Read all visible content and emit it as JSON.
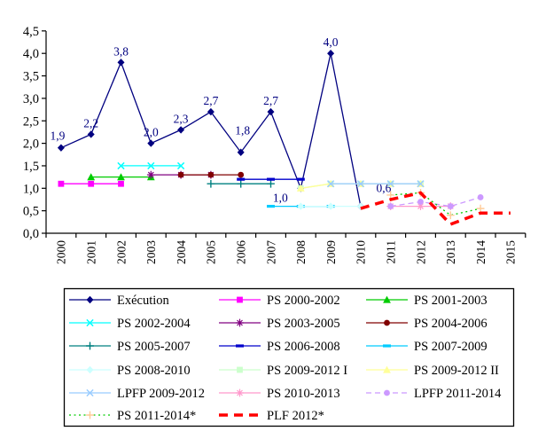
{
  "chart_data": {
    "type": "line",
    "title": "",
    "xlabel": "",
    "ylabel": "",
    "grid": false,
    "legend_position": "bottom",
    "ylim": [
      0,
      4.5
    ],
    "ytick_step": 0.5,
    "ytick_labels": [
      "0,0",
      "0,5",
      "1,0",
      "1,5",
      "2,0",
      "2,5",
      "3,0",
      "3,5",
      "4,0",
      "4,5"
    ],
    "x_categories": [
      "2000",
      "2001",
      "2002",
      "2003",
      "2004",
      "2005",
      "2006",
      "2007",
      "2008",
      "2009",
      "2010",
      "2011",
      "2012",
      "2013",
      "2014",
      "2015"
    ],
    "series": [
      {
        "name": "Exécution",
        "color": "#000080",
        "marker": "diamond",
        "line_style": "solid",
        "line_width": 1.3,
        "years": [
          2000,
          2001,
          2002,
          2003,
          2004,
          2005,
          2006,
          2007,
          2008,
          2009,
          2010
        ],
        "values": [
          1.9,
          2.2,
          3.8,
          2.0,
          2.3,
          2.7,
          1.8,
          2.7,
          1.0,
          4.0,
          0.6
        ],
        "point_labels": [
          "1,9",
          "2,2",
          "3,8",
          "2,0",
          "2,3",
          "2,7",
          "1,8",
          "2,7",
          "1,0",
          "4,0",
          "0,6"
        ]
      },
      {
        "name": "PS 2000-2002",
        "color": "#FF00FF",
        "marker": "square",
        "line_style": "solid",
        "years": [
          2000,
          2001,
          2002
        ],
        "values": [
          1.1,
          1.1,
          1.1
        ]
      },
      {
        "name": "PS 2001-2003",
        "color": "#00CC00",
        "marker": "triangle",
        "line_style": "solid",
        "years": [
          2001,
          2002,
          2003
        ],
        "values": [
          1.25,
          1.25,
          1.25
        ]
      },
      {
        "name": "PS 2002-2004",
        "color": "#00FFFF",
        "marker": "x",
        "line_style": "solid",
        "years": [
          2002,
          2003,
          2004
        ],
        "values": [
          1.5,
          1.5,
          1.5
        ]
      },
      {
        "name": "PS 2003-2005",
        "color": "#800080",
        "marker": "asterisk",
        "line_style": "solid",
        "years": [
          2003,
          2004,
          2005
        ],
        "values": [
          1.3,
          1.3,
          1.3
        ]
      },
      {
        "name": "PS 2004-2006",
        "color": "#800000",
        "marker": "circle",
        "line_style": "solid",
        "years": [
          2004,
          2005,
          2006
        ],
        "values": [
          1.3,
          1.3,
          1.3
        ]
      },
      {
        "name": "PS 2005-2007",
        "color": "#008080",
        "marker": "plus",
        "line_style": "solid",
        "years": [
          2005,
          2006,
          2007
        ],
        "values": [
          1.1,
          1.1,
          1.1
        ]
      },
      {
        "name": "PS 2006-2008",
        "color": "#0000CC",
        "marker": "hdash",
        "line_style": "solid",
        "years": [
          2006,
          2007,
          2008
        ],
        "values": [
          1.2,
          1.2,
          1.2
        ]
      },
      {
        "name": "PS 2007-2009",
        "color": "#00CCFF",
        "marker": "hdash",
        "line_style": "solid",
        "years": [
          2007,
          2008,
          2009
        ],
        "values": [
          0.6,
          0.6,
          0.6
        ]
      },
      {
        "name": "PS 2008-2010",
        "color": "#CCFFFF",
        "marker": "diamond",
        "line_style": "solid",
        "years": [
          2008,
          2009,
          2010
        ],
        "values": [
          0.6,
          0.6,
          0.6
        ]
      },
      {
        "name": "PS 2009-2012 I",
        "color": "#CCFFCC",
        "marker": "square",
        "line_style": "solid",
        "years": [
          2008,
          2009,
          2010,
          2011,
          2012
        ],
        "values": [
          1.0,
          1.1,
          1.1,
          1.1,
          1.1
        ]
      },
      {
        "name": "PS 2009-2012 II",
        "color": "#FFFF99",
        "marker": "triangle",
        "line_style": "solid",
        "years": [
          2008,
          2009,
          2010,
          2011,
          2012
        ],
        "values": [
          1.0,
          1.1,
          1.1,
          1.1,
          1.1
        ]
      },
      {
        "name": "LPFP 2009-2012",
        "color": "#99CCFF",
        "marker": "x",
        "line_style": "solid",
        "years": [
          2009,
          2010,
          2011,
          2012
        ],
        "values": [
          1.1,
          1.1,
          1.1,
          1.1
        ]
      },
      {
        "name": "PS 2010-2013",
        "color": "#FF99CC",
        "marker": "asterisk",
        "line_style": "solid",
        "years": [
          2011,
          2012,
          2013
        ],
        "values": [
          0.6,
          0.6,
          0.6
        ]
      },
      {
        "name": "LPFP 2011-2014",
        "color": "#CC99FF",
        "marker": "circle",
        "line_style": "dashed",
        "years": [
          2011,
          2012,
          2013,
          2014
        ],
        "values": [
          0.6,
          0.7,
          0.6,
          0.8
        ]
      },
      {
        "name": "PS 2011-2014*",
        "color": "#00CC00",
        "marker": "plus",
        "marker_color": "#FFCC99",
        "line_style": "dotted",
        "years": [
          2011,
          2012,
          2013,
          2014
        ],
        "values": [
          0.85,
          0.9,
          0.4,
          0.55
        ]
      },
      {
        "name": "PLF 2012*",
        "color": "#FF0000",
        "marker": "none",
        "line_style": "plf_dashed",
        "line_width": 3.5,
        "years": [
          2010,
          2011,
          2012,
          2013,
          2014,
          2015
        ],
        "values": [
          0.55,
          0.75,
          0.9,
          0.2,
          0.45,
          0.45
        ]
      }
    ]
  }
}
